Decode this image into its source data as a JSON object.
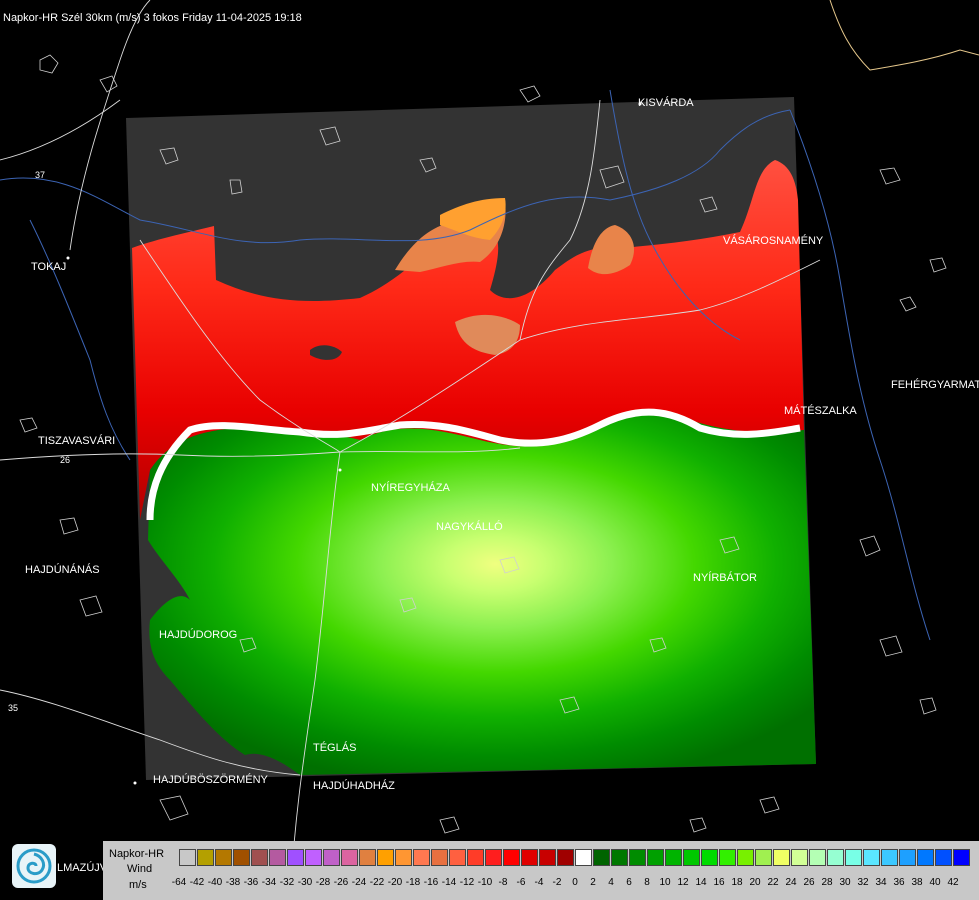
{
  "header": {
    "title": "Napkor-HR Szél 30km (m/s) 3 fokos Friday 11-04-2025 19:18"
  },
  "cities": [
    {
      "id": "kisvarda",
      "name": "KISVÁRDA"
    },
    {
      "id": "tokaj",
      "name": "TOKAJ"
    },
    {
      "id": "vasarosnameny",
      "name": "VÁSÁROSNAMÉNY"
    },
    {
      "id": "fehergyarmat",
      "name": "FEHÉRGYARMAT"
    },
    {
      "id": "mateszalka",
      "name": "MÁTÉSZALKA"
    },
    {
      "id": "tiszavasvari",
      "name": "TISZAVASVÁRI"
    },
    {
      "id": "nyiregyhaza",
      "name": "NYÍREGYHÁZA"
    },
    {
      "id": "nagykallo",
      "name": "NAGYKÁLLÓ"
    },
    {
      "id": "hajdunanas",
      "name": "HAJDÚNÁNÁS"
    },
    {
      "id": "nyirbator",
      "name": "NYÍRBÁTOR"
    },
    {
      "id": "hajdudorog",
      "name": "HAJDÚDOROG"
    },
    {
      "id": "teglas",
      "name": "TÉGLÁS"
    },
    {
      "id": "hajduboszormeny",
      "name": "HAJDÚBÖSZÖRMÉNY"
    },
    {
      "id": "hajduhadhaz",
      "name": "HAJDÚHADHÁZ"
    },
    {
      "id": "balmazujvaros",
      "name": "LMAZÚJVÁR"
    }
  ],
  "road_numbers": [
    "37",
    "26",
    "35"
  ],
  "legend": {
    "title_line1": "Napkor-HR",
    "title_line2": "Wind",
    "title_line3": "m/s",
    "swatch_colors": [
      "#c8c8c8",
      "#b4a000",
      "#b47800",
      "#a05000",
      "#a05050",
      "#b45aa0",
      "#a050ff",
      "#c060ff",
      "#c060c8",
      "#dc64a0",
      "#e08040",
      "#ffa000",
      "#ff9632",
      "#ff7850",
      "#e87040",
      "#ff6040",
      "#ff3c28",
      "#ff1e1e",
      "#ff0000",
      "#e00000",
      "#c80000",
      "#a00000",
      "#ffffff",
      "#006400",
      "#007800",
      "#008c00",
      "#00a000",
      "#00b400",
      "#00c800",
      "#00dc00",
      "#32f000",
      "#78f000",
      "#a0f050",
      "#f0ff64",
      "#d2ff96",
      "#b4ffb4",
      "#96ffd2",
      "#78ffe6",
      "#5ae6ff",
      "#3cc8ff",
      "#1ea0ff",
      "#0078ff",
      "#0050ff",
      "#0000ff"
    ],
    "tick_labels": [
      "-64",
      "-42",
      "-40",
      "-38",
      "-36",
      "-34",
      "-32",
      "-30",
      "-28",
      "-26",
      "-24",
      "-22",
      "-20",
      "-18",
      "-16",
      "-14",
      "-12",
      "-10",
      "-8",
      "-6",
      "-4",
      "-2",
      "0",
      "2",
      "4",
      "6",
      "8",
      "10",
      "12",
      "14",
      "16",
      "18",
      "20",
      "22",
      "24",
      "26",
      "28",
      "30",
      "32",
      "34",
      "36",
      "38",
      "40",
      "42"
    ]
  }
}
